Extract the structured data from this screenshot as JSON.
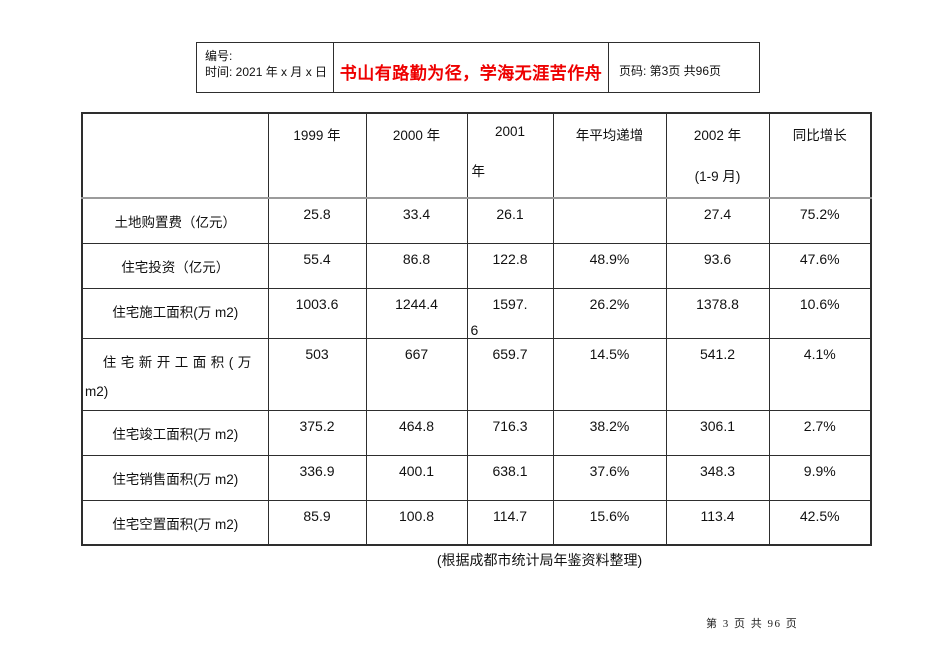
{
  "header_box": {
    "number_label": "编号:",
    "time_label": "时间: 2021 年 x 月 x 日",
    "motto": "书山有路勤为径，学海无涯苦作舟",
    "page_info": "页码: 第3页 共96页"
  },
  "colors": {
    "motto_red": "#ee0000",
    "border": "#2e2e2e"
  },
  "table": {
    "header": {
      "c1": "1999 年",
      "c2": "2000 年",
      "c3_line1": "2001",
      "c3_line2": "年",
      "c4": "年平均递增",
      "c5_line1": "2002 年",
      "c5_line2": "(1-9 月)",
      "c6": "同比增长"
    },
    "rows": [
      {
        "label_lines": [
          "土地购置费（亿元）"
        ],
        "cells": [
          [
            "25.8"
          ],
          [
            "33.4"
          ],
          [
            "26.1"
          ],
          [
            ""
          ],
          [
            "27.4"
          ],
          [
            "75.2%"
          ]
        ]
      },
      {
        "label_lines": [
          "住宅投资（亿元）"
        ],
        "cells": [
          [
            "55.4"
          ],
          [
            "86.8"
          ],
          [
            "122.8"
          ],
          [
            "48.9%"
          ],
          [
            "93.6"
          ],
          [
            "47.6%"
          ]
        ]
      },
      {
        "label_lines": [
          "住宅施工面积(万 m2)"
        ],
        "cells": [
          [
            "1003.6"
          ],
          [
            "1244.4"
          ],
          [
            "1597.",
            "6"
          ],
          [
            "26.2%"
          ],
          [
            "1378.8"
          ],
          [
            "10.6%"
          ]
        ]
      },
      {
        "label_lines": [
          "住宅新开工面积(万",
          "m2)"
        ],
        "cells": [
          [
            "503"
          ],
          [
            "667"
          ],
          [
            "659.7"
          ],
          [
            "14.5%"
          ],
          [
            "541.2"
          ],
          [
            "4.1%"
          ]
        ]
      },
      {
        "label_lines": [
          "住宅竣工面积(万 m2)"
        ],
        "cells": [
          [
            "375.2"
          ],
          [
            "464.8"
          ],
          [
            "716.3"
          ],
          [
            "38.2%"
          ],
          [
            "306.1"
          ],
          [
            "2.7%"
          ]
        ]
      },
      {
        "label_lines": [
          "住宅销售面积(万 m2)"
        ],
        "cells": [
          [
            "336.9"
          ],
          [
            "400.1"
          ],
          [
            "638.1"
          ],
          [
            "37.6%"
          ],
          [
            "348.3"
          ],
          [
            "9.9%"
          ]
        ]
      },
      {
        "label_lines": [
          "住宅空置面积(万 m2)"
        ],
        "cells": [
          [
            "85.9"
          ],
          [
            "100.8"
          ],
          [
            "114.7"
          ],
          [
            "15.6%"
          ],
          [
            "113.4"
          ],
          [
            "42.5%"
          ]
        ]
      }
    ]
  },
  "caption": "(根据成都市统计局年鉴资料整理)",
  "footer": {
    "page_text": "第 3 页 共 96 页"
  }
}
